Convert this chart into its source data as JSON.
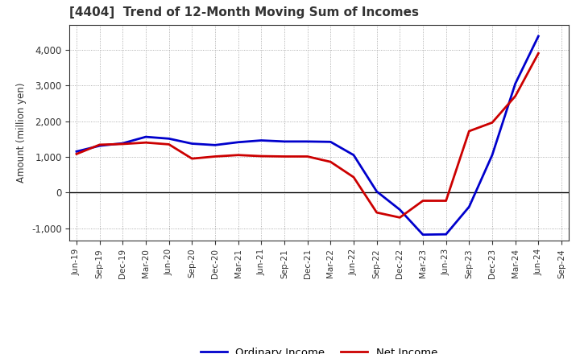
{
  "title": "[4404]  Trend of 12-Month Moving Sum of Incomes",
  "ylabel": "Amount (million yen)",
  "background_color": "#ffffff",
  "plot_bg_color": "#ffffff",
  "grid_color": "#999999",
  "x_labels": [
    "Jun-19",
    "Sep-19",
    "Dec-19",
    "Mar-20",
    "Jun-20",
    "Sep-20",
    "Dec-20",
    "Mar-21",
    "Jun-21",
    "Sep-21",
    "Dec-21",
    "Mar-22",
    "Jun-22",
    "Sep-22",
    "Dec-22",
    "Mar-23",
    "Jun-23",
    "Sep-23",
    "Dec-23",
    "Mar-24",
    "Jun-24",
    "Sep-24"
  ],
  "ordinary_income": [
    1150,
    1310,
    1380,
    1560,
    1510,
    1370,
    1330,
    1410,
    1460,
    1430,
    1430,
    1420,
    1050,
    30,
    -480,
    -1180,
    -1170,
    -400,
    1050,
    3050,
    4380,
    null
  ],
  "net_income": [
    1080,
    1340,
    1360,
    1400,
    1350,
    950,
    1010,
    1050,
    1020,
    1010,
    1010,
    860,
    430,
    -560,
    -700,
    -230,
    -230,
    1720,
    1960,
    2700,
    3900,
    null
  ],
  "ordinary_color": "#0000cc",
  "net_color": "#cc0000",
  "ylim": [
    -1350,
    4700
  ],
  "yticks": [
    -1000,
    0,
    1000,
    2000,
    3000,
    4000
  ],
  "line_width": 2.0
}
